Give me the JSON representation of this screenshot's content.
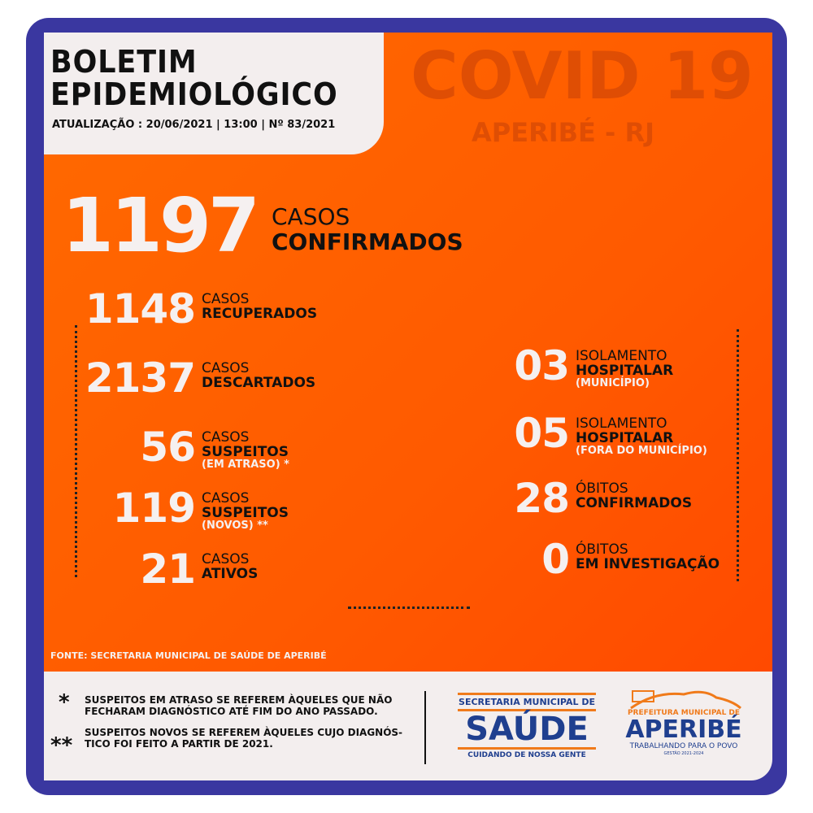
{
  "header": {
    "title_line1": "BOLETIM",
    "title_line2": "EPIDEMIOLÓGICO",
    "update": "ATUALIZAÇÃO : 20/06/2021  |  13:00  |  Nº 83/2021"
  },
  "banner": {
    "title": "COVID 19",
    "place": "APERIBÉ - RJ"
  },
  "confirmed": {
    "value": "1197",
    "l1": "CASOS",
    "l2": "CONFIRMADOS"
  },
  "left_stats": [
    {
      "value": "1148",
      "l1": "CASOS",
      "l2": "RECUPERADOS",
      "l3": ""
    },
    {
      "value": "2137",
      "l1": "CASOS",
      "l2": "DESCARTADOS",
      "l3": ""
    },
    {
      "value": "56",
      "l1": "CASOS",
      "l2": "SUSPEITOS",
      "l3": "(EM ATRASO) *"
    },
    {
      "value": "119",
      "l1": "CASOS",
      "l2": "SUSPEITOS",
      "l3": "(NOVOS) **"
    },
    {
      "value": "21",
      "l1": "CASOS",
      "l2": "ATIVOS",
      "l3": ""
    }
  ],
  "right_stats": [
    {
      "value": "03",
      "l1": "ISOLAMENTO",
      "l2": "HOSPITALAR",
      "l3": "(MUNICÍPIO)"
    },
    {
      "value": "05",
      "l1": "ISOLAMENTO",
      "l2": "HOSPITALAR",
      "l3": "(FORA DO MUNICÍPIO)"
    },
    {
      "value": "28",
      "l1": "ÓBITOS",
      "l2": "CONFIRMADOS",
      "l3": ""
    },
    {
      "value": "0",
      "l1": "ÓBITOS",
      "l2": "EM INVESTIGAÇÃO",
      "l3": ""
    }
  ],
  "source": "FONTE: SECRETARIA MUNICIPAL DE SAÚDE DE APERIBÉ",
  "notes": [
    {
      "mark": "*",
      "text1": "SUSPEITOS EM ATRASO SE REFEREM ÀQUELES QUE NÃO",
      "text2": "FECHARAM DIAGNÓSTICO ATÉ FIM DO ANO PASSADO."
    },
    {
      "mark": "**",
      "text1": "SUSPEITOS NOVOS SE REFEREM ÀQUELES CUJO DIAGNÓS-",
      "text2": "TICO FOI FEITO A PARTIR DE 2021."
    }
  ],
  "logo_saude": {
    "top": "SECRETARIA MUNICIPAL DE",
    "main": "SAÚDE",
    "bottom": "CUIDANDO DE NOSSA GENTE"
  },
  "logo_prefeitura": {
    "top": "PREFEITURA MUNICIPAL DE",
    "main": "APERIBÉ",
    "slogan": "TRABALHANDO PARA O POVO",
    "term": "GESTÃO 2021-2024"
  },
  "colors": {
    "frame": "#3a37a0",
    "orange": "#ff5e00",
    "light": "#f3eeee",
    "blue": "#1f3f8f",
    "accent": "#f07a1a"
  }
}
